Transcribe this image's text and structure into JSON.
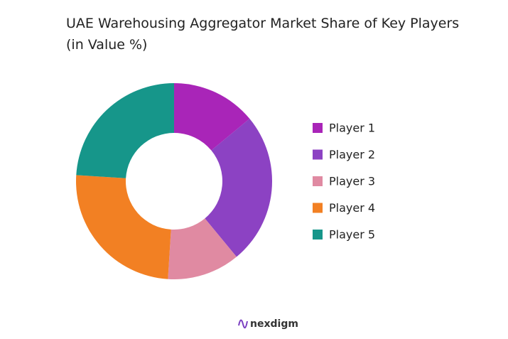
{
  "chart_data": {
    "type": "pie",
    "title": "UAE Warehousing Aggregator Market Share of Key Players (in Value %)",
    "categories": [
      "Player 1",
      "Player 2",
      "Player 3",
      "Player 4",
      "Player 5"
    ],
    "values": [
      14,
      25,
      12,
      25,
      24
    ],
    "colors": [
      "#a925b8",
      "#8c42c3",
      "#e08aa2",
      "#f28023",
      "#16968a"
    ],
    "donut": true,
    "legend": "right"
  },
  "watermark": "nexdigm"
}
